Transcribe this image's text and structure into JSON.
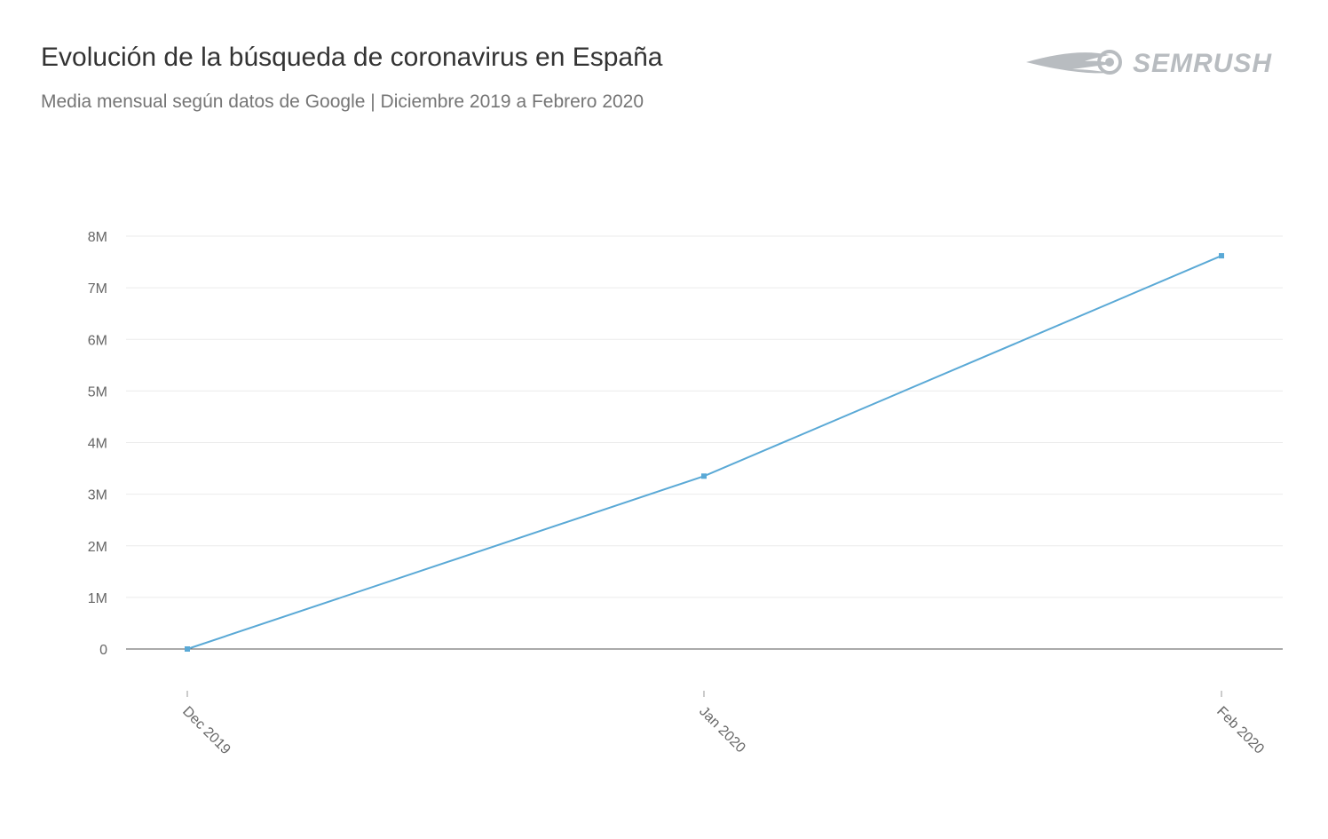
{
  "header": {
    "title": "Evolución de la búsqueda de coronavirus en España",
    "subtitle": "Media mensual según datos de Google | Diciembre 2019 a Febrero 2020",
    "logo_text": "SEMRUSH"
  },
  "colors": {
    "line": "#5aa9d6",
    "grid": "#ebebeb",
    "axis": "#555555",
    "text": "#666666",
    "logo": "#b8bcc0"
  },
  "chart_data": {
    "type": "line",
    "title": "Evolución de la búsqueda de coronavirus en España",
    "subtitle": "Media mensual según datos de Google | Diciembre 2019 a Febrero 2020",
    "categories": [
      "Dec 2019",
      "Jan 2020",
      "Feb 2020"
    ],
    "series": [
      {
        "values": [
          0,
          3350000,
          7620000
        ]
      }
    ],
    "ylim": [
      0,
      8000000
    ],
    "yticks": [
      0,
      1000000,
      2000000,
      3000000,
      4000000,
      5000000,
      6000000,
      7000000,
      8000000
    ],
    "ytick_labels": [
      "0",
      "1M",
      "2M",
      "3M",
      "4M",
      "5M",
      "6M",
      "7M",
      "8M"
    ],
    "grid": true,
    "legend": "none"
  }
}
